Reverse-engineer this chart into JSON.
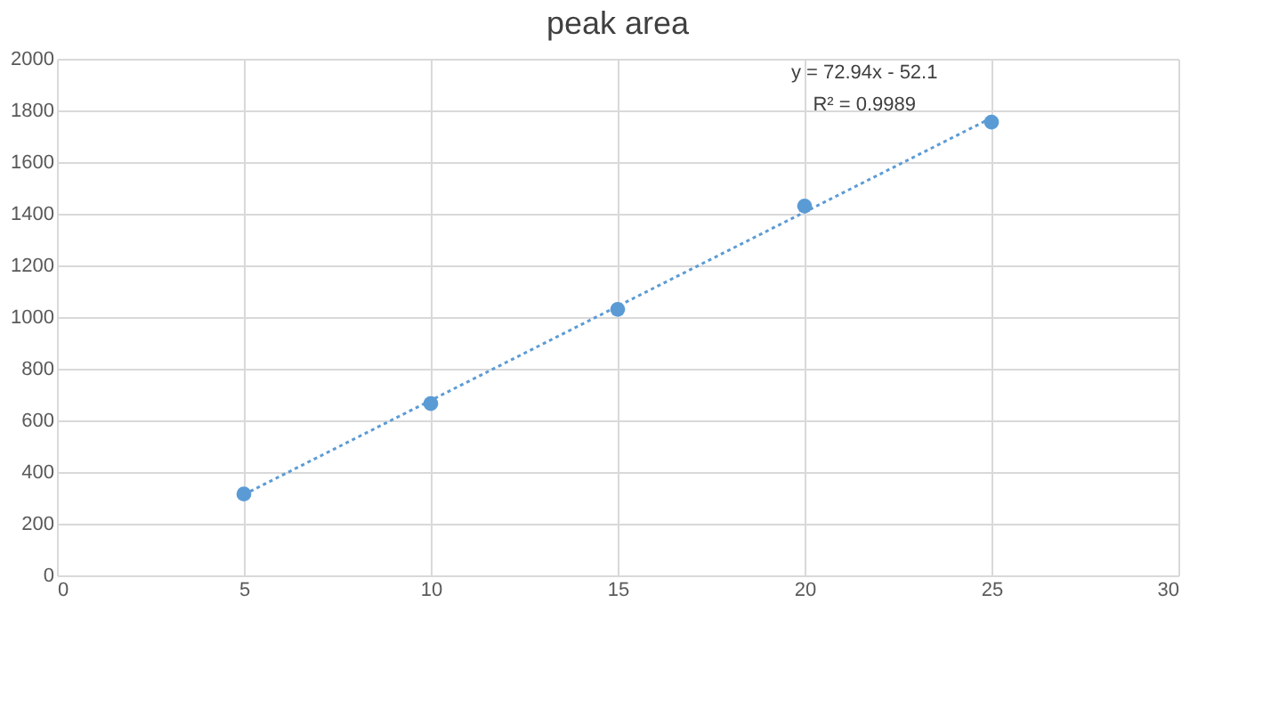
{
  "chart_data": {
    "type": "scatter",
    "title": "peak area",
    "xlim": [
      0,
      30
    ],
    "xticks": [
      0,
      5,
      10,
      15,
      20,
      25,
      30
    ],
    "ylim": [
      0,
      2000
    ],
    "yticks": [
      0,
      200,
      400,
      600,
      800,
      1000,
      1200,
      1400,
      1600,
      1800,
      2000
    ],
    "grid": true,
    "marker": "circle",
    "series": [
      {
        "color": "#5b9bd5",
        "x": [
          5,
          10,
          15,
          20,
          25
        ],
        "values": [
          315,
          665,
          1030,
          1430,
          1755
        ]
      },
      {
        "type": "line",
        "color": "#5b9bd5",
        "line_style": "dotted",
        "marker": "none",
        "x": [
          5,
          25
        ],
        "values": [
          313,
          1771
        ]
      }
    ],
    "annotations": [
      "y = 72.94x - 52.1",
      "R² = 0.9989"
    ]
  }
}
